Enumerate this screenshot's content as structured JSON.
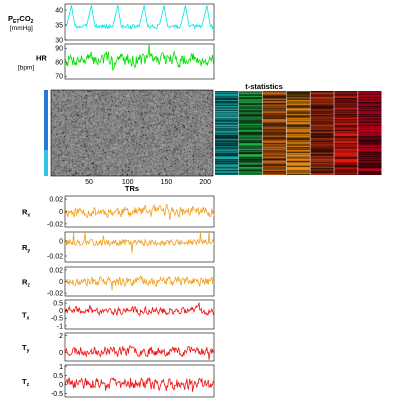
{
  "figure": {
    "tstats_title": "t-statistics",
    "x_axis_title": "TRs",
    "x_ticks": [
      "50",
      "100",
      "150",
      "200"
    ]
  },
  "chart_data": [
    {
      "type": "line",
      "id": "petco2",
      "ylabel_main": "P",
      "ylabel_sub": "ET",
      "ylabel_tail": "CO",
      "ylabel_tail_sub": "2",
      "unit": "[mmHg]",
      "yticks": [
        "40",
        "35",
        "30"
      ],
      "ylim": [
        30,
        42
      ],
      "xlim": [
        1,
        210
      ],
      "color": "#00e5e5",
      "pattern": "breaths",
      "peaks_x": [
        10,
        38,
        75,
        112,
        140,
        170,
        200
      ],
      "baseline": 34.5,
      "peak_value": 41.5
    },
    {
      "type": "line",
      "id": "hr",
      "ylabel_main": "HR",
      "unit": "[bpm]",
      "yticks": [
        "90",
        "80",
        "70"
      ],
      "ylim": [
        68,
        93
      ],
      "xlim": [
        1,
        210
      ],
      "color": "#00dd00",
      "pattern": "noise",
      "mean": 82,
      "amp": 7,
      "seed": 7
    },
    {
      "type": "heatmap",
      "id": "voxel-timeseries",
      "xticks": [
        "50",
        "100",
        "150",
        "200"
      ],
      "xlim": [
        1,
        210
      ],
      "xlabel": "TRs",
      "colormap": "gray",
      "side_bar_colors": [
        "#2a78d6",
        "#31c3e8"
      ]
    },
    {
      "type": "heatmap",
      "id": "t-statistics",
      "title": "t-statistics",
      "columns": [
        {
          "color": "#15a0a0"
        },
        {
          "color": "#1f9e40"
        },
        {
          "color": "#b85a10"
        },
        {
          "color": "#d07a10"
        },
        {
          "color": "#9a2a10"
        },
        {
          "color": "#c0160e"
        },
        {
          "color": "#a8001a"
        }
      ]
    },
    {
      "type": "line",
      "id": "rx",
      "ylabel_main": "R",
      "ylabel_sub": "x",
      "yticks": [
        "0.02",
        "0",
        "-0.02"
      ],
      "ylim": [
        -0.025,
        0.025
      ],
      "color": "#f0a020",
      "pattern": "noise",
      "mean": 0,
      "amp": 0.012,
      "seed": 11
    },
    {
      "type": "line",
      "id": "ry",
      "ylabel_main": "R",
      "ylabel_sub": "y",
      "yticks": [
        "0",
        "-0.02"
      ],
      "ylim": [
        -0.028,
        0.012
      ],
      "color": "#f0a020",
      "pattern": "spiky",
      "mean": -0.002,
      "amp": 0.004,
      "spike": 0.018,
      "seed": 13
    },
    {
      "type": "line",
      "id": "rz",
      "ylabel_main": "R",
      "ylabel_sub": "z",
      "yticks": [
        "0.02",
        "0",
        "-0.02"
      ],
      "ylim": [
        -0.025,
        0.025
      ],
      "color": "#f0a020",
      "pattern": "noise",
      "mean": 0,
      "amp": 0.011,
      "seed": 17
    },
    {
      "type": "line",
      "id": "tx",
      "ylabel_main": "T",
      "ylabel_sub": "x",
      "yticks": [
        "0.5",
        "0",
        "-0.5",
        "-1"
      ],
      "ylim": [
        -1.2,
        0.7
      ],
      "color": "#ee1111",
      "pattern": "noise",
      "mean": 0,
      "amp": 0.35,
      "seed": 19
    },
    {
      "type": "line",
      "id": "ty",
      "ylabel_main": "T",
      "ylabel_sub": "y",
      "yticks": [
        "2",
        "0"
      ],
      "ylim": [
        -1,
        2.3
      ],
      "color": "#ee1111",
      "pattern": "noise",
      "mean": 0.2,
      "amp": 0.8,
      "seed": 23
    },
    {
      "type": "line",
      "id": "tz",
      "ylabel_main": "T",
      "ylabel_sub": "z",
      "yticks": [
        "1",
        "0.5",
        "0",
        "-0.5"
      ],
      "ylim": [
        -0.7,
        1.1
      ],
      "color": "#ee1111",
      "pattern": "noise",
      "mean": 0.05,
      "amp": 0.45,
      "seed": 29
    }
  ]
}
